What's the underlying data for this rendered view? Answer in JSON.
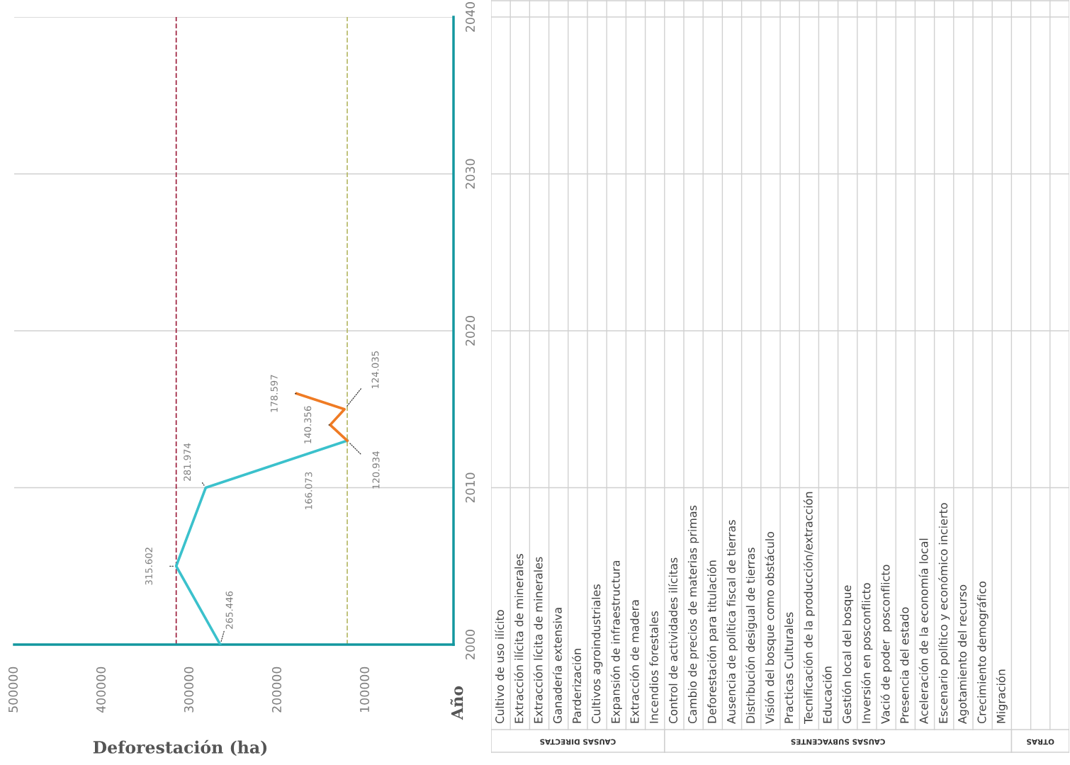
{
  "chart_data": [
    {
      "type": "line",
      "ylabel": "Año",
      "xlabel": "Deforestación (ha)",
      "orientation": "horizontal",
      "ylim": [
        2000,
        2040
      ],
      "yticks": [
        2000,
        2010,
        2020,
        2030,
        2040
      ],
      "xlim": [
        500000,
        0
      ],
      "xticks": [
        100000,
        200000,
        300000,
        400000,
        500000
      ],
      "grid": "y",
      "line_style": "solid",
      "series": [
        {
          "color": "#3bc1cc",
          "x": [
            2000,
            2005,
            2010,
            2013
          ],
          "values": [
            265446,
            315602,
            281974,
            120934
          ],
          "value_labels": [
            "265.446",
            "315.602",
            "281.974",
            "120.934"
          ]
        },
        {
          "color": "#ef7b24",
          "x": [
            2013,
            2014,
            2015,
            2016
          ],
          "values": [
            120934,
            140356,
            124035,
            178597
          ],
          "value_labels": [
            null,
            "140.356",
            "124.035",
            "178.597"
          ]
        }
      ],
      "ref_lines": [
        {
          "axis": "x",
          "value": 315602,
          "color": "#9b1b3a",
          "line_style": "dashed"
        },
        {
          "axis": "x",
          "value": 120934,
          "color": "#b5b865",
          "line_style": "dashed"
        }
      ],
      "annotations": [
        "166.073"
      ]
    },
    {
      "type": "other",
      "categories": [
        "Cultivo de uso ilícito",
        "Extracción ilícita de minerales",
        "Extracción lícita de minerales",
        "Ganadería extensiva",
        "Parderización",
        "Cultivos agroindustriales",
        "Expansión de infraestructura",
        "Extracción de madera",
        "Incendios forestales",
        "Control de actividades ilícitas",
        "Cambio de precios de materias primas",
        "Deforestación para titulación",
        "Ausencia de política fiscal de tierras",
        "Distribución desigual de tierras",
        "Visión del bosque como obstáculo",
        "Practicas Culturales",
        "Tecnificación de la producción/extracción",
        "Educación",
        "Gestión local del bosque",
        "Inversión en posconflicto",
        "Vació de poder  posconflicto",
        "Presencia del estado",
        "Aceleración de la economía local",
        "Escenario político y económico incierto",
        "Agotamiento del recurso",
        "Crecimiento demográfico",
        "Migración",
        null,
        null,
        null
      ],
      "annotations": [
        "CAUSAS DIRECTAS",
        "CAUSAS SUBYACENTES",
        "OTRAS"
      ]
    }
  ]
}
